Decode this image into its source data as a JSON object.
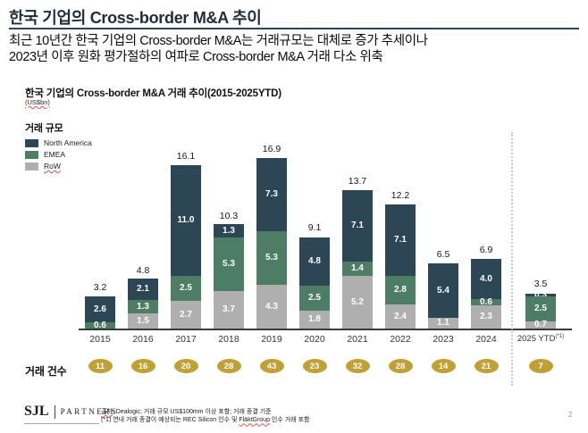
{
  "page": {
    "number": "2"
  },
  "header": {
    "title": "한국 기업의 Cross-border M&A 추이",
    "subtitle_line1": "최근 10년간 한국 기업의 Cross-border M&A는 거래규모는 대체로 증가 추세이나",
    "subtitle_line2": "2023년 이후 원화 평가절하의 여파로 Cross-border M&A 거래 다소 위축"
  },
  "chart": {
    "title": "한국 기업의 Cross-border M&A 거래 추이(2015-2025YTD)",
    "unit": "(US$bn)",
    "legend_title": "거래 규모"
  },
  "chart_data": {
    "type": "bar",
    "stacked": true,
    "title": "한국 기업의 Cross-border M&A 거래 추이(2015-2025YTD)",
    "ylabel": "US$bn",
    "ylim": [
      0,
      18
    ],
    "grid": false,
    "legend_position": "top-left",
    "categories": [
      "2015",
      "2016",
      "2017",
      "2018",
      "2019",
      "2020",
      "2021",
      "2022",
      "2023",
      "2024",
      "2025 YTD"
    ],
    "last_category_sup": "(*1)",
    "series": [
      {
        "name": "RoW",
        "color": "#afafaf",
        "values": [
          0,
          1.5,
          2.7,
          3.7,
          4.3,
          1.8,
          5.2,
          2.4,
          1.1,
          2.3,
          0.7
        ]
      },
      {
        "name": "EMEA",
        "color": "#4e7d66",
        "values": [
          0.6,
          1.3,
          2.5,
          5.3,
          5.3,
          2.5,
          1.4,
          2.8,
          0,
          0.6,
          2.5
        ]
      },
      {
        "name": "North America",
        "color": "#2d4656",
        "values": [
          2.6,
          2.1,
          11.0,
          1.3,
          7.3,
          4.8,
          7.1,
          7.1,
          5.4,
          4.0,
          0.3
        ]
      }
    ],
    "totals": [
      "3.2",
      "4.8",
      "16.1",
      "10.3",
      "16.9",
      "9.1",
      "13.7",
      "12.2",
      "6.5",
      "6.9",
      "3.5"
    ]
  },
  "deal_counts": {
    "label": "거래 건수",
    "badge_color": "#bfa136",
    "values": [
      11,
      16,
      20,
      28,
      43,
      23,
      32,
      28,
      14,
      21,
      7
    ]
  },
  "footer": {
    "logo_sjl": "SJL",
    "logo_partners": "PARTNERS",
    "note1_source": "출처",
    "note1_rest": ": Dealogic; 거래 규모 US$100mm 이상 포함; 거래 종결 기준",
    "note2_pre": "(*1) 연내 거래 종결이 예상되는 REC Silicon 인수 및 ",
    "note2_misspell": "FläktGroup",
    "note2_post": " 인수 거래 포함"
  }
}
